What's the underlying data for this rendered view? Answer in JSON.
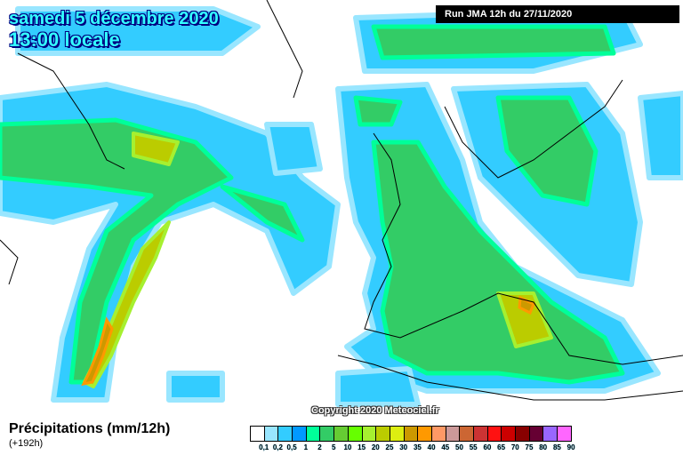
{
  "header": {
    "date": "samedi 5 décembre 2020",
    "time": "13:00 locale",
    "run": "Run JMA 12h du 27/11/2020"
  },
  "copyright": "Copyright 2020 Meteociel.fr",
  "footer": {
    "title": "Précipitations (mm/12h)",
    "subtitle": "(+192h)"
  },
  "legend": {
    "colors": [
      "#ffffff",
      "#99e6ff",
      "#33ccff",
      "#0099ff",
      "#00ff99",
      "#33cc66",
      "#66cc33",
      "#66ff00",
      "#a6f030",
      "#bbcc00",
      "#ddee11",
      "#cc9900",
      "#ff9900",
      "#ff9966",
      "#cc9999",
      "#cc6633",
      "#cc3333",
      "#ff1111",
      "#cc0000",
      "#880000",
      "#660033",
      "#9966ff",
      "#ff66ff"
    ],
    "labels": [
      "0,1",
      "0,2",
      "0,5",
      "1",
      "2",
      "5",
      "10",
      "15",
      "20",
      "25",
      "30",
      "35",
      "40",
      "45",
      "50",
      "55",
      "60",
      "65",
      "70",
      "75",
      "80",
      "85",
      "90"
    ]
  }
}
